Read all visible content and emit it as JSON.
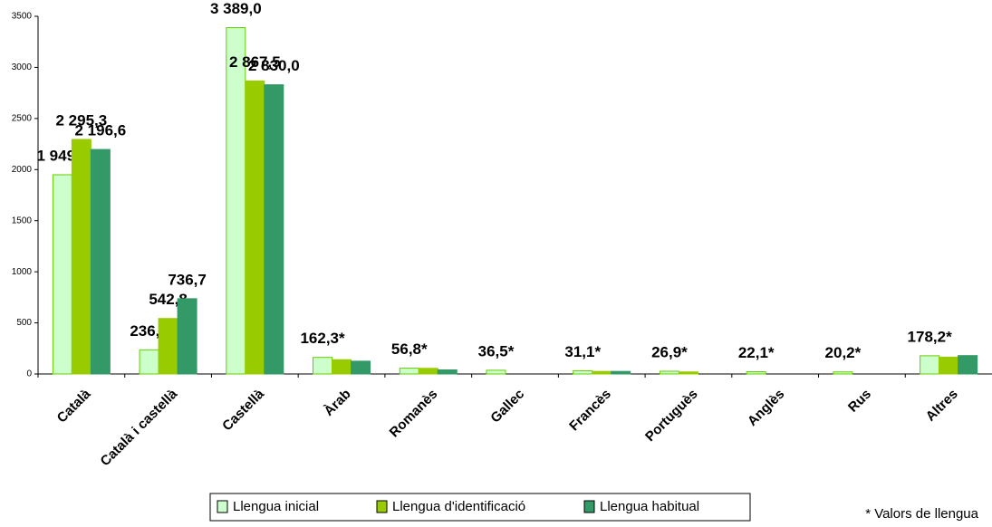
{
  "chart_data": {
    "type": "bar",
    "categories": [
      "Català",
      "Català i castellà",
      "Castellà",
      "Àrab",
      "Romanès",
      "Gallec",
      "Francès",
      "Portuguès",
      "Anglès",
      "Rus",
      "Altres"
    ],
    "series": [
      {
        "name": "Llengua inicial",
        "color": "#ccffcc",
        "stroke": "#66cc00",
        "values": [
          1949.5,
          236.5,
          3389.0,
          162.3,
          56.8,
          36.5,
          31.1,
          26.9,
          22.1,
          20.2,
          178.2
        ],
        "value_labels": [
          "1 949,5",
          "236,5",
          "3 389,0",
          "162,3*",
          "56,8*",
          "36,5*",
          "31,1*",
          "26,9*",
          "22,1*",
          "20,2*",
          "178,2*"
        ]
      },
      {
        "name": "Llengua d'identificació",
        "color": "#99cc00",
        "stroke": "#99cc00",
        "values": [
          2295.3,
          542.8,
          2867.5,
          140,
          55,
          null,
          25,
          20,
          null,
          null,
          165
        ],
        "value_labels": [
          "2 295,3",
          "542,8",
          "2 867,5",
          null,
          null,
          null,
          null,
          null,
          null,
          null,
          null
        ]
      },
      {
        "name": "Llengua habitual",
        "color": "#339966",
        "stroke": "#339966",
        "values": [
          2196.6,
          736.7,
          2830.0,
          125,
          40,
          null,
          25,
          null,
          null,
          null,
          180
        ],
        "value_labels": [
          "2 196,6",
          "736,7",
          "2 830,0",
          null,
          null,
          null,
          null,
          null,
          null,
          null,
          null
        ]
      }
    ],
    "ylim": [
      0,
      3500
    ],
    "yticks": [
      0,
      500,
      1000,
      1500,
      2000,
      2500,
      3000,
      3500
    ],
    "legend": "bottom",
    "note": "* Valors de llengua"
  }
}
